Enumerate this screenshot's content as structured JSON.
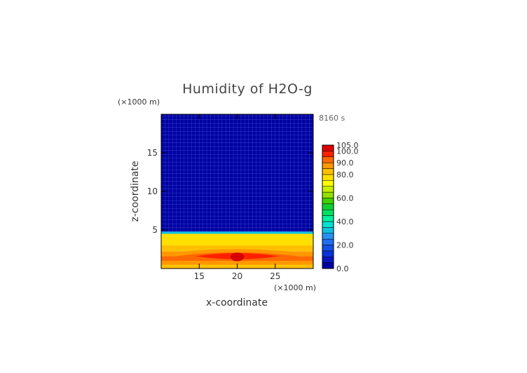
{
  "chart_data": {
    "type": "heatmap",
    "title": "Humidity of H2O-g",
    "xlabel": "x-coordinate",
    "ylabel": "z-coordinate",
    "x_unit": "(×1000 m)",
    "y_unit": "(×1000 m)",
    "time_label": "8160 s",
    "xlim": [
      10,
      30
    ],
    "ylim": [
      0,
      20
    ],
    "x_ticks": [
      15,
      20,
      25
    ],
    "y_ticks": [
      5,
      10,
      15
    ],
    "colorbar": {
      "labels": [
        "0.0",
        "20.0",
        "40.0",
        "60.0",
        "80.0",
        "90.0",
        "100.0",
        "105.0"
      ],
      "levels": [
        0,
        5,
        10,
        15,
        20,
        25,
        30,
        35,
        40,
        45,
        50,
        55,
        60,
        65,
        70,
        75,
        80,
        85,
        90,
        95,
        100,
        105
      ],
      "colors": [
        "#0000a0",
        "#0a14c0",
        "#0a32d8",
        "#1450e6",
        "#1e6ef0",
        "#2890f5",
        "#10c0e0",
        "#00e0d0",
        "#00f0a0",
        "#00e060",
        "#10d030",
        "#40d000",
        "#90e000",
        "#c8f000",
        "#ffff00",
        "#ffe000",
        "#ffc000",
        "#ff9800",
        "#ff6800",
        "#ff2000",
        "#e00000",
        "#ffffff"
      ]
    },
    "bands": [
      {
        "z_from": 4.8,
        "z_to": 20,
        "value": 2
      },
      {
        "z_from": 4.5,
        "z_to": 4.8,
        "value": 32
      },
      {
        "z_from": 3.0,
        "z_to": 4.5,
        "value": 78
      },
      {
        "z_from": 2.2,
        "z_to": 3.0,
        "value": 83
      },
      {
        "z_from": 1.6,
        "z_to": 2.2,
        "value": 88
      },
      {
        "z_from": 1.0,
        "z_to": 1.6,
        "value": 92
      },
      {
        "z_from": 0.5,
        "z_to": 1.0,
        "value": 88
      },
      {
        "z_from": 0.0,
        "z_to": 0.5,
        "value": 83
      }
    ],
    "core": {
      "x": 20,
      "z": 1.5,
      "value": 102
    }
  },
  "colors": {
    "frame": "#000000",
    "text": "#333333"
  }
}
